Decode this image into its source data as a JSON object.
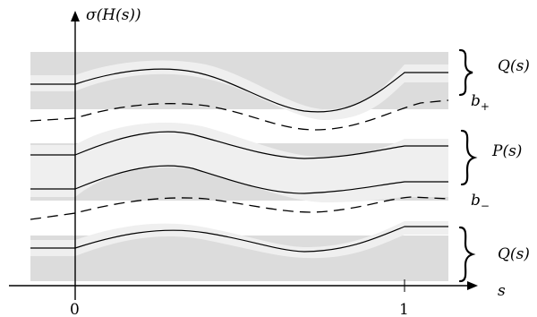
{
  "diagram": {
    "axes": {
      "y_label": "σ(H(s))",
      "x_label": "s",
      "x_ticks": [
        "0",
        "1"
      ]
    },
    "labels": {
      "q_top": "Q(s)",
      "p_mid": "P(s)",
      "q_bottom": "Q(s)",
      "b_plus": "b",
      "b_plus_sub": "+",
      "b_minus": "b",
      "b_minus_sub": "−"
    },
    "colors": {
      "band_dark": "#dcdcdc",
      "band_light": "#e9e9e9",
      "curve": "#000000"
    }
  }
}
